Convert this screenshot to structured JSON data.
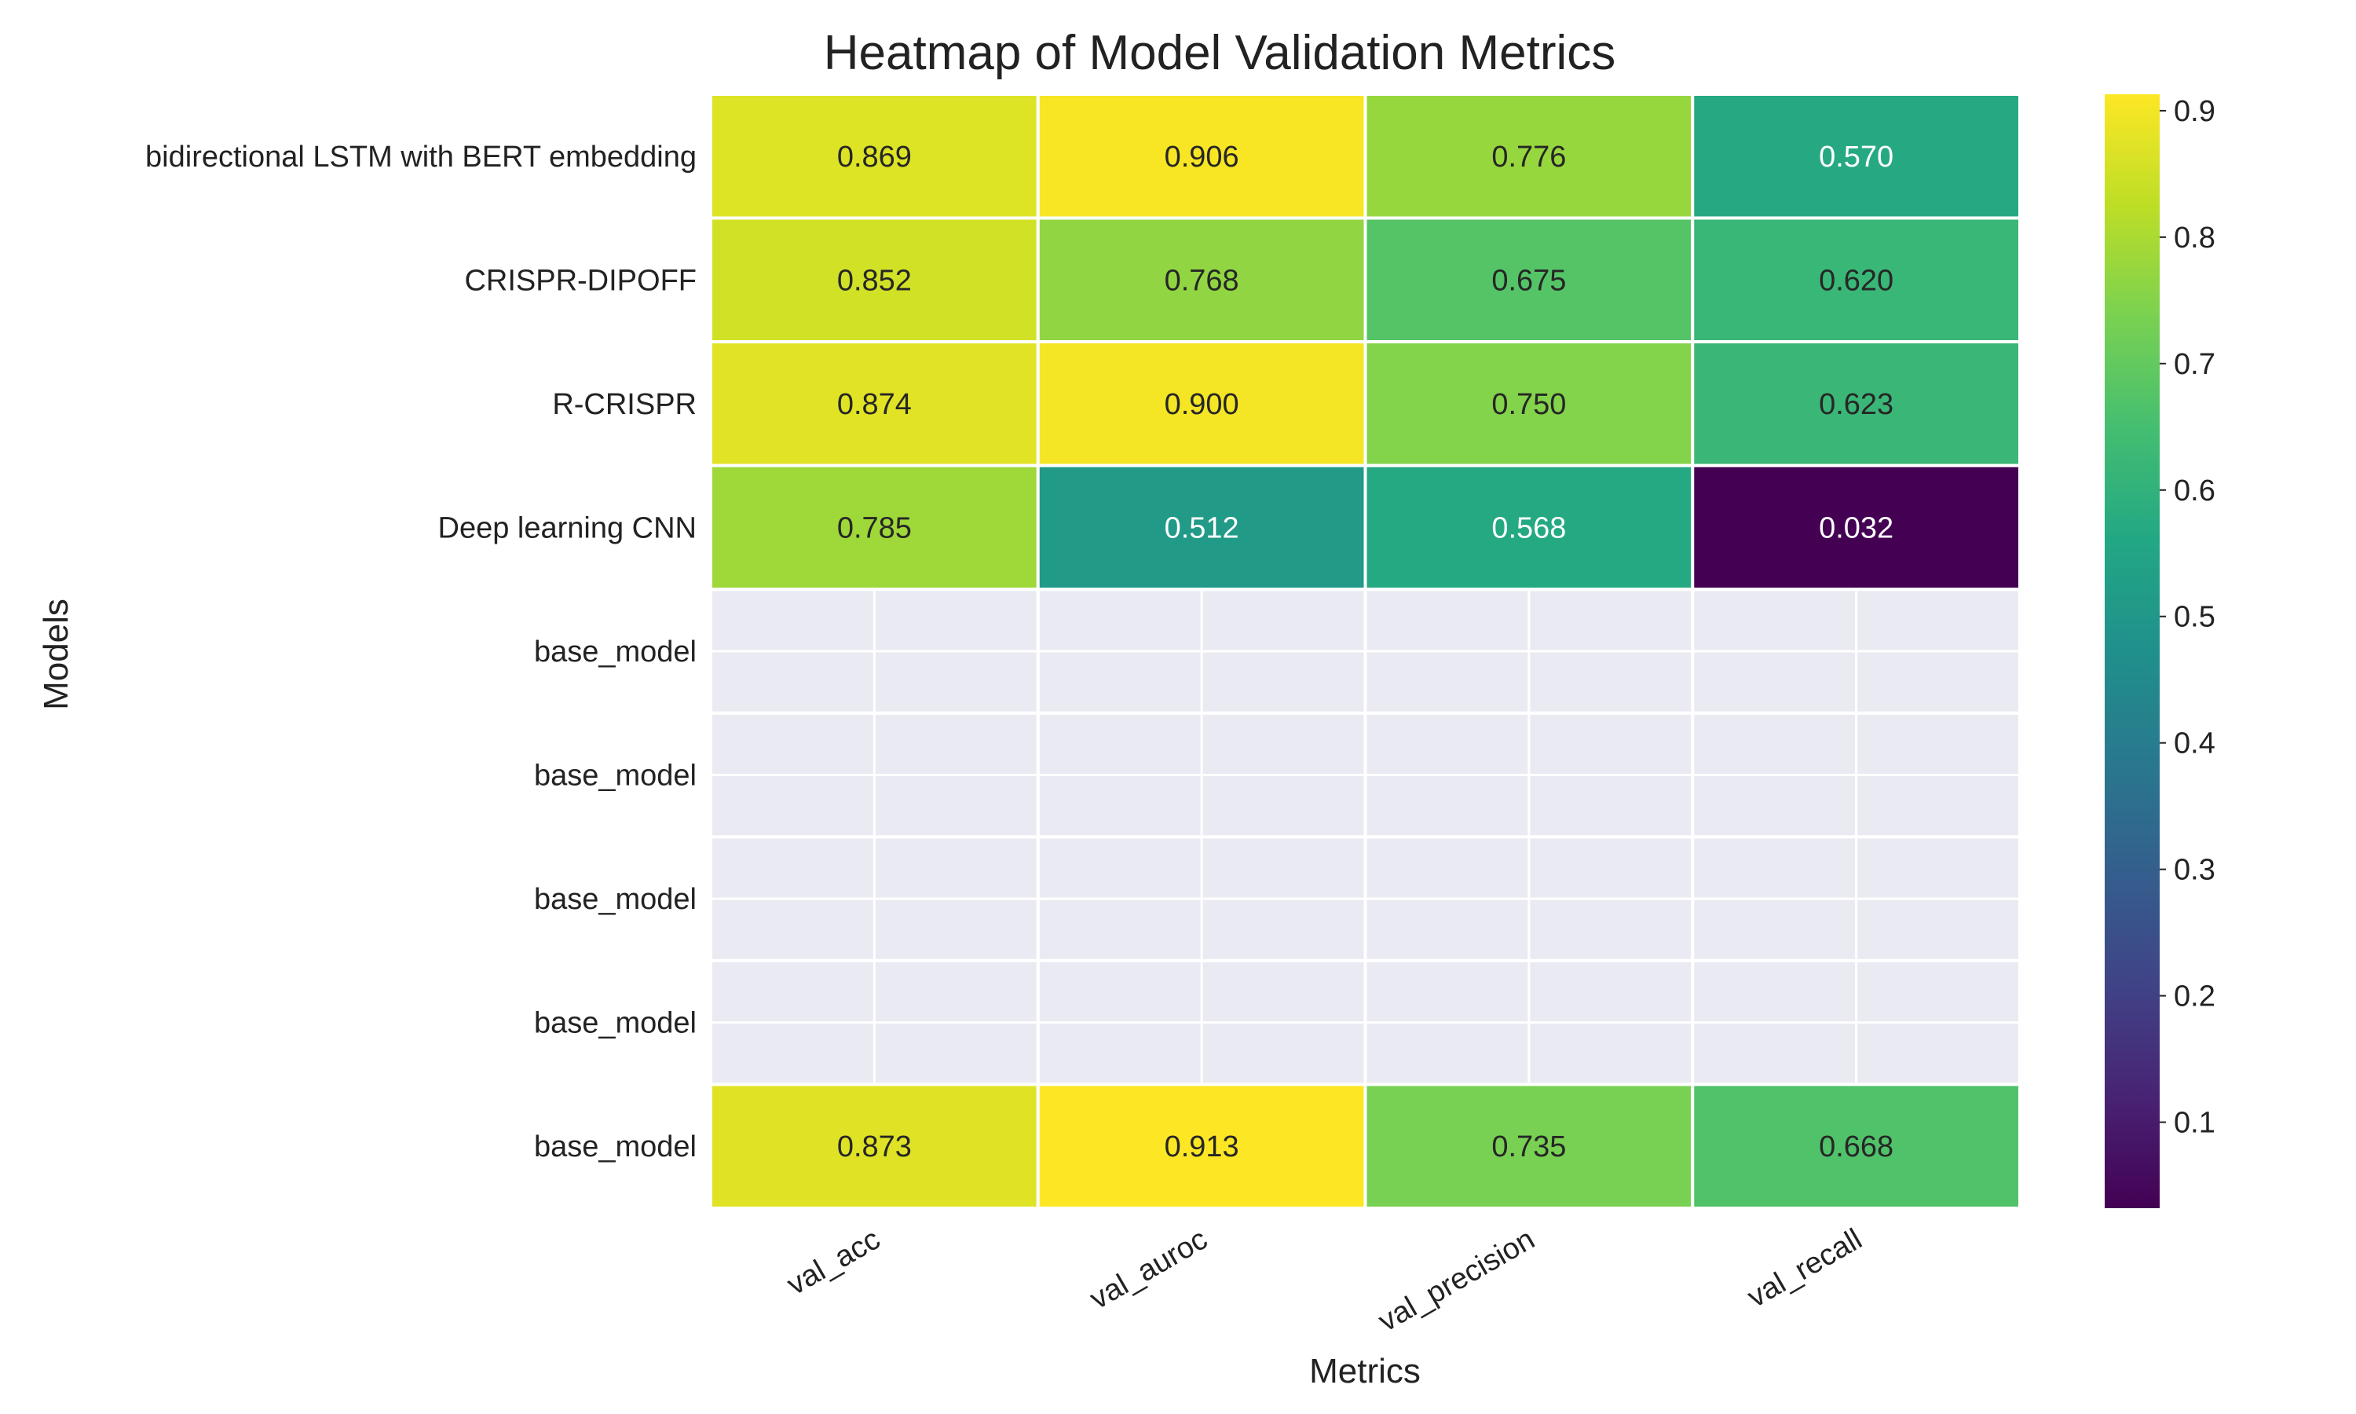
{
  "chart_data": {
    "type": "heatmap",
    "title": "Heatmap of Model Validation Metrics",
    "xlabel": "Metrics",
    "ylabel": "Models",
    "columns": [
      "val_acc",
      "val_auroc",
      "val_precision",
      "val_recall"
    ],
    "rows": [
      "bidirectional LSTM with BERT embedding",
      "CRISPR-DIPOFF",
      "R-CRISPR",
      "Deep learning CNN",
      "base_model",
      "base_model",
      "base_model",
      "base_model",
      "base_model"
    ],
    "values": [
      [
        0.869,
        0.906,
        0.776,
        0.57
      ],
      [
        0.852,
        0.768,
        0.675,
        0.62
      ],
      [
        0.874,
        0.9,
        0.75,
        0.623
      ],
      [
        0.785,
        0.512,
        0.568,
        0.032
      ],
      [
        null,
        null,
        null,
        null
      ],
      [
        null,
        null,
        null,
        null
      ],
      [
        null,
        null,
        null,
        null
      ],
      [
        null,
        null,
        null,
        null
      ],
      [
        0.873,
        0.913,
        0.735,
        0.668
      ]
    ],
    "value_format": "0.000",
    "colormap": "viridis",
    "vmin": 0.032,
    "vmax": 0.913,
    "colorbar_ticks": [
      0.1,
      0.2,
      0.3,
      0.4,
      0.5,
      0.6,
      0.7,
      0.8,
      0.9
    ],
    "missing_color": "#EAEAF2",
    "grid": true,
    "colorbar_position": "right"
  }
}
